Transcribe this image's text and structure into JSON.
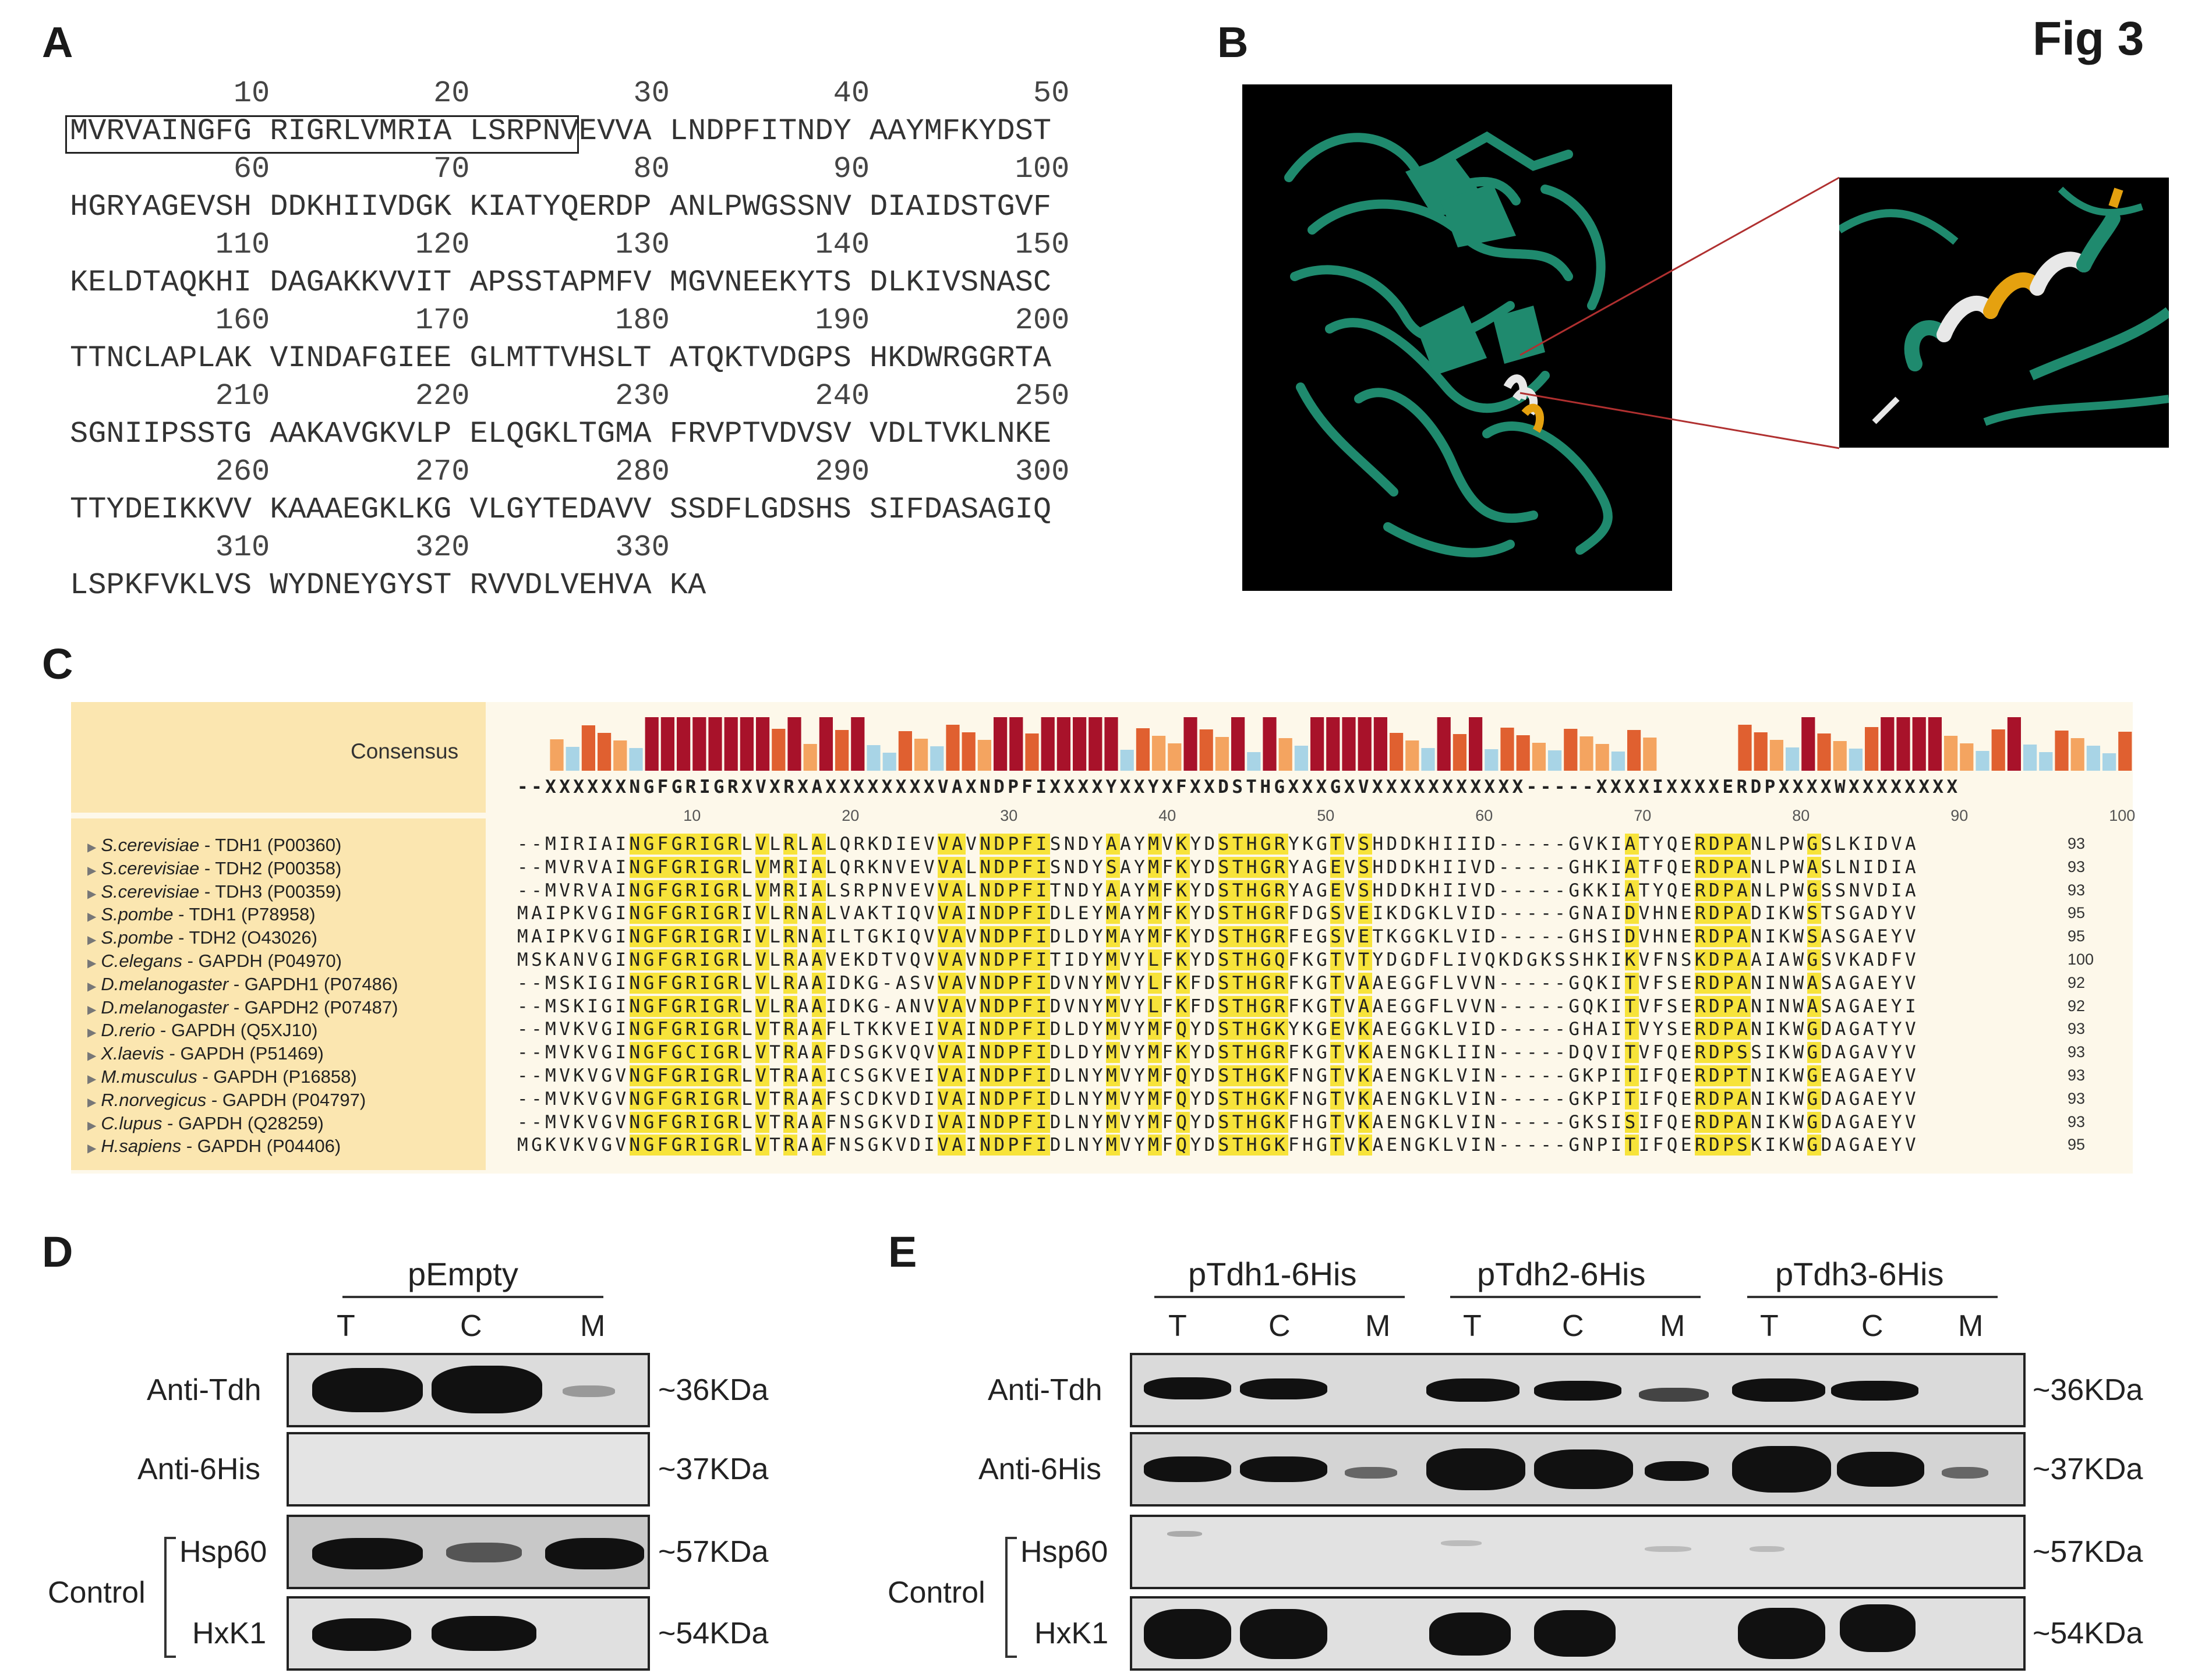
{
  "figure": {
    "title": "Fig 3"
  },
  "panels": {
    "A": "A",
    "B": "B",
    "C": "C",
    "D": "D",
    "E": "E"
  },
  "panel_a": {
    "rows": [
      {
        "nums": "         10         20         30         40         50",
        "seq": "MVRVAINGFG RIGRLVMRIA LSRPNVEVVA LNDPFITNDY AAYMFKYDST"
      },
      {
        "nums": "         60         70         80         90        100",
        "seq": "HGRYAGEVSH DDKHIIVDGK KIATYQERDP ANLPWGSSNV DIAIDSTGVF"
      },
      {
        "nums": "        110        120        130        140        150",
        "seq": "KELDTAQKHI DAGAKKVVIT APSSTAPMFV MGVNEEKYTS DLKIVSNASC"
      },
      {
        "nums": "        160        170        180        190        200",
        "seq": "TTNCLAPLAK VINDAFGIEE GLMTTVHSLT ATQKTVDGPS HKDWRGGRTA"
      },
      {
        "nums": "        210        220        230        240        250",
        "seq": "SGNIIPSSTG AAKAVGKVLP ELQGKLTGMA FRVPTVDVSV VDLTVKLNKE"
      },
      {
        "nums": "        260        270        280        290        300",
        "seq": "TTYDEIKKVV KAAAEGKLKG VLGYTEDAVV SSDFLGDSHS SIFDASAGIQ"
      },
      {
        "nums": "        310        320        330",
        "seq": "LSPKFVKLVS WYDNEYGYST RVVDLVEHVA KA"
      }
    ]
  },
  "panel_c": {
    "consensus_label": "Consensus",
    "consensus_seq": "--XXXXXXNGFGRIGRXVXRXAXXXXXXXXVAXNDPFIXXXXYXXYXFXXDSTHGXXXGXVXXXXXXXXXXX-----XXXXIXXXXERDPXXXXWXXXXXXXX",
    "ruler": [
      "10",
      "20",
      "30",
      "40",
      "50",
      "60",
      "70",
      "80",
      "90",
      "100"
    ],
    "rows": [
      {
        "sp": "S.cerevisiae",
        "gene": " - TDH1 (P00360)",
        "seq": "--MIRIAINGFGRIGRLVLRLALQRKDIEVVAVNDPFISNDYAAYMVKYDSTHGRYKGTVSHDDKHIIID-----GVKIATYQERDPANLPWGSLKIDVA",
        "len": "93"
      },
      {
        "sp": "S.cerevisiae",
        "gene": " - TDH2 (P00358)",
        "seq": "--MVRVAINGFGRIGRLVMRIALQRKNVEVVALNDPFISNDYSAYMFKYDSTHGRYAGEVSHDDKHIIVD-----GHKIATFQERDPANLPWASLNIDIA",
        "len": "93"
      },
      {
        "sp": "S.cerevisiae",
        "gene": " - TDH3 (P00359)",
        "seq": "--MVRVAINGFGRIGRLVMRIALSRPNVEVVALNDPFITNDYAAYMFKYDSTHGRYAGEVSHDDKHIIVD-----GKKIATYQERDPANLPWGSSNVDIA",
        "len": "93"
      },
      {
        "sp": "S.pombe",
        "gene": " - TDH1 (P78958)",
        "seq": "MAIPKVGINGFGRIGRIVLRNALVAKTIQVVAINDPFIDLEYMAYMFKYDSTHGRFDGSVEIKDGKLVID-----GNAIDVHNERDPADIKWSTSGADYV",
        "len": "95"
      },
      {
        "sp": "S.pombe",
        "gene": " - TDH2 (O43026)",
        "seq": "MAIPKVGINGFGRIGRIVLRNAILTGKIQVVAVNDPFIDLDYMAYMFKYDSTHGRFEGSVETKGGKLVID-----GHSIDVHNERDPANIKWSASGAEYV",
        "len": "95"
      },
      {
        "sp": "C.elegans",
        "gene": " - GAPDH (P04970)",
        "seq": "MSKANVGINGFGRIGRLVLRAAVEKDTVQVVAVNDPFITIDYMVYLFKYDSTHGQFKGTVTYDGDFLIVQKDGKSSHKIKVFNSKDPAAIAWGSVKADFV",
        "len": "100"
      },
      {
        "sp": "D.melanogaster",
        "gene": " - GAPDH1 (P07486)",
        "seq": "--MSKIGINGFGRIGRLVLRAAIDKG-ASVVAVNDPFIDVNYMVYLFKFDSTHGRFKGTVAAEGGFLVVN-----GQKITVFSERDPANINWASAGAEYV",
        "len": "92"
      },
      {
        "sp": "D.melanogaster",
        "gene": " - GAPDH2 (P07487)",
        "seq": "--MSKIGINGFGRIGRLVLRAAIDKG-ANVVAVNDPFIDVNYMVYLFKFDSTHGRFKGTVAAEGGFLVVN-----GQKITVFSERDPANINWASAGAEYI",
        "len": "92"
      },
      {
        "sp": "D.rerio",
        "gene": " - GAPDH (Q5XJ10)",
        "seq": "--MVKVGINGFGRIGRLVTRAAFLTKKVEIVAINDPFIDLDYMVYMFQYDSTHGKYKGEVKAEGGKLVID-----GHAITVYSERDPANIKWGDAGATYV",
        "len": "93"
      },
      {
        "sp": "X.laevis",
        "gene": " - GAPDH (P51469)",
        "seq": "--MVKVGINGFGCIGRLVTRAAFDSGKVQVVAINDPFIDLDYMVYMFKYDSTHGRFKGTVKAENGKLIIN-----DQVITVFQERDPSSIKWGDAGAVYV",
        "len": "93"
      },
      {
        "sp": "M.musculus",
        "gene": " - GAPDH (P16858)",
        "seq": "--MVKVGVNGFGRIGRLVTRAAICSGKVEIVAINDPFIDLNYMVYMFQYDSTHGKFNGTVKAENGKLVIN-----GKPITIFQERDPTNIKWGEAGAEYV",
        "len": "93"
      },
      {
        "sp": "R.norvegicus",
        "gene": " - GAPDH (P04797)",
        "seq": "--MVKVGVNGFGRIGRLVTRAAFSCDKVDIVAINDPFIDLNYMVYMFQYDSTHGKFNGTVKAENGKLVIN-----GKPITIFQERDPANIKWGDAGAEYV",
        "len": "93"
      },
      {
        "sp": "C.lupus",
        "gene": " - GAPDH (Q28259)",
        "seq": "--MVKVGVNGFGRIGRLVTRAAFNSGKVDIVAINDPFIDLNYMVYMFQYDSTHGKFHGTVKAENGKLVIN-----GKSISIFQERDPANIKWGDAGAEYV",
        "len": "93"
      },
      {
        "sp": "H.sapiens",
        "gene": " - GAPDH (P04406)",
        "seq": "MGKVKVGVNGFGRIGRLVTRAAFNSGKVDIVAINDPFIDLNYMVYMFQYDSTHGKFHGTVKAENGKLVIN-----GNPITIFQERDPSKIKWGDAGAEYV",
        "len": "95"
      }
    ]
  },
  "panel_d": {
    "group": "pEmpty",
    "lanes": [
      "T",
      "C",
      "M"
    ],
    "rows": [
      "Anti-Tdh",
      "Anti-6His",
      "Hsp60",
      "HxK1"
    ],
    "kda": [
      "~36KDa",
      "~37KDa",
      "~57KDa",
      "~54KDa"
    ],
    "control": "Control"
  },
  "panel_e": {
    "groups": [
      "pTdh1-6His",
      "pTdh2-6His",
      "pTdh3-6His"
    ],
    "lanes": [
      "T",
      "C",
      "M",
      "T",
      "C",
      "M",
      "T",
      "C",
      "M"
    ],
    "rows": [
      "Anti-Tdh",
      "Anti-6His",
      "Hsp60",
      "HxK1"
    ],
    "kda": [
      "~36KDa",
      "~37KDa",
      "~57KDa",
      "~54KDa"
    ],
    "control": "Control"
  }
}
